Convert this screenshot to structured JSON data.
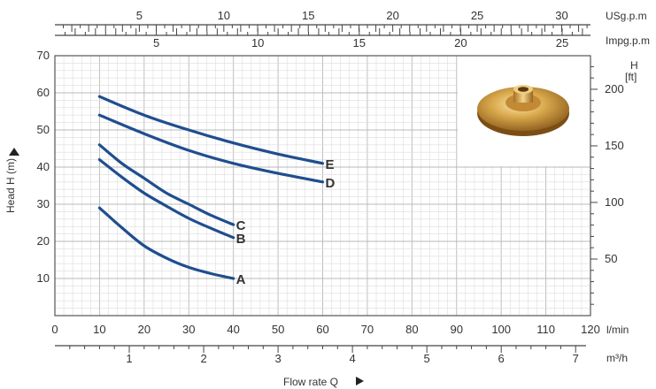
{
  "chart_data": {
    "type": "line",
    "xlabel": "Flow rate Q",
    "ylabel": "Head H (m)",
    "x_unit": "l/min",
    "xlim": [
      0,
      120
    ],
    "ylim": [
      0,
      70
    ],
    "x_ticks": [
      0,
      10,
      20,
      30,
      40,
      50,
      60,
      70,
      80,
      90,
      100,
      110,
      120
    ],
    "y_ticks": [
      10,
      20,
      30,
      40,
      50,
      60,
      70
    ],
    "grid": true,
    "series": [
      {
        "name": "E",
        "x": [
          10,
          20,
          30,
          40,
          50,
          60
        ],
        "y": [
          59,
          54,
          50,
          46.5,
          43.5,
          41
        ]
      },
      {
        "name": "D",
        "x": [
          10,
          20,
          30,
          40,
          50,
          60
        ],
        "y": [
          54,
          49,
          44.5,
          41,
          38.3,
          36
        ]
      },
      {
        "name": "C",
        "x": [
          10,
          15,
          20,
          25,
          30,
          35,
          40
        ],
        "y": [
          46,
          41,
          37,
          33,
          30,
          27,
          24.5
        ]
      },
      {
        "name": "B",
        "x": [
          10,
          15,
          20,
          25,
          30,
          35,
          40
        ],
        "y": [
          42,
          37.3,
          33,
          29.5,
          26.2,
          23.5,
          21
        ]
      },
      {
        "name": "A",
        "x": [
          10,
          15,
          20,
          25,
          30,
          35,
          40
        ],
        "y": [
          29,
          23.7,
          18.8,
          15.5,
          13,
          11.3,
          10
        ]
      }
    ],
    "secondary_axes": {
      "usgpm": {
        "label": "USg.p.m",
        "ticks": [
          5,
          10,
          15,
          20,
          25,
          30
        ],
        "lpm_per_unit": 3.785
      },
      "impgpm": {
        "label": "Impg.p.m",
        "ticks": [
          5,
          10,
          15,
          20,
          25
        ],
        "lpm_per_unit": 4.546
      },
      "m3h": {
        "label": "m³/h",
        "ticks": [
          1,
          2,
          3,
          4,
          5,
          6,
          7
        ],
        "lpm_per_unit": 16.667
      },
      "ft": {
        "label_1": "H",
        "label_2": "[ft]",
        "ticks": [
          50,
          100,
          150,
          200
        ],
        "m_per_unit": 0.3048
      }
    },
    "line_color": "#1f4e8f"
  },
  "impeller_image": {
    "name": "brass-impeller",
    "colors": {
      "light": "#f2d58a",
      "mid": "#cf9a3c",
      "dark": "#7a4e14"
    }
  }
}
